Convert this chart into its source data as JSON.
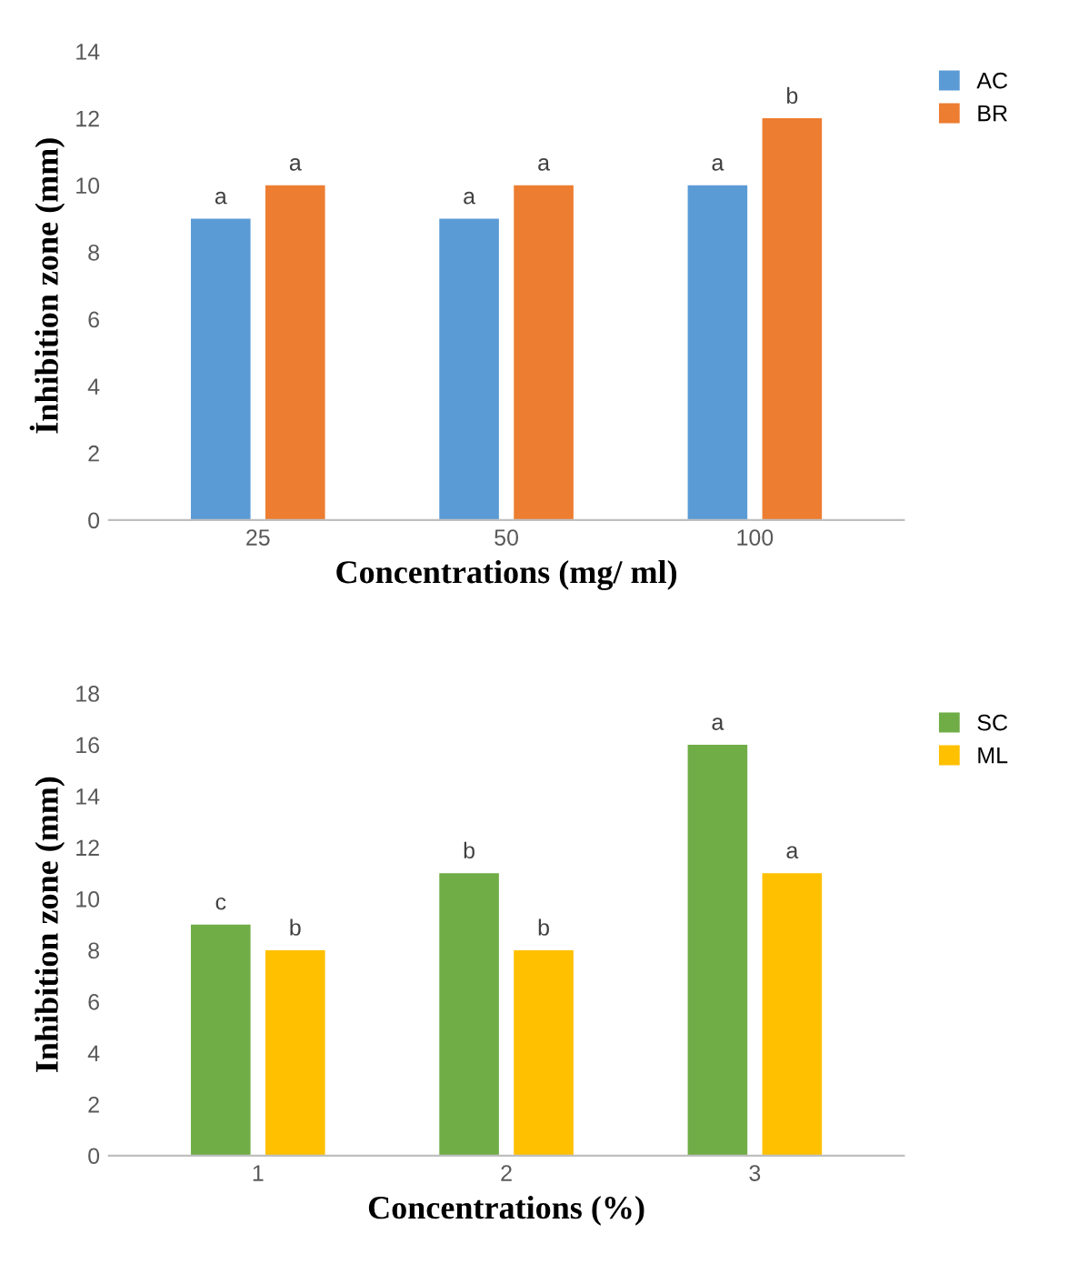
{
  "chart_data": [
    {
      "type": "bar",
      "xlabel": "Concentrations (mg/ ml)",
      "ylabel": "İnhibition zone (mm)",
      "categories": [
        "25",
        "50",
        "100"
      ],
      "ylim": [
        0,
        14
      ],
      "yticks": [
        0,
        2,
        4,
        6,
        8,
        10,
        12,
        14
      ],
      "grid": false,
      "legend": "top right",
      "series": [
        {
          "name": "AC",
          "color": "#5b9bd5",
          "values": [
            9,
            9,
            10
          ],
          "value_labels": [
            "a",
            "a",
            "a"
          ]
        },
        {
          "name": "BR",
          "color": "#ed7d31",
          "values": [
            10,
            10,
            12
          ],
          "value_labels": [
            "a",
            "a",
            "b"
          ]
        }
      ]
    },
    {
      "type": "bar",
      "xlabel": "Concentrations (%)",
      "ylabel": "Inhibition zone (mm)",
      "categories": [
        "1",
        "2",
        "3"
      ],
      "ylim": [
        0,
        18
      ],
      "yticks": [
        0,
        2,
        4,
        6,
        8,
        10,
        12,
        14,
        16,
        18
      ],
      "grid": false,
      "legend": "top right",
      "series": [
        {
          "name": "SC",
          "color": "#70ad47",
          "values": [
            9,
            11,
            16
          ],
          "value_labels": [
            "c",
            "b",
            "a"
          ]
        },
        {
          "name": "ML",
          "color": "#ffc000",
          "values": [
            8,
            8,
            11
          ],
          "value_labels": [
            "b",
            "b",
            "a"
          ]
        }
      ]
    }
  ]
}
